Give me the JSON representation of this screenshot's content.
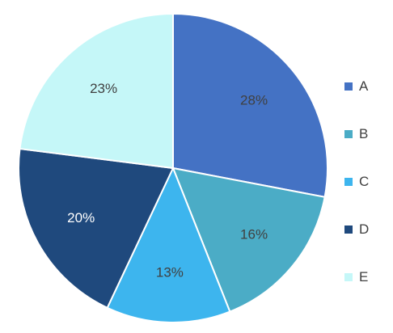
{
  "chart_data": {
    "type": "pie",
    "categories": [
      "A",
      "B",
      "C",
      "D",
      "E"
    ],
    "values": [
      28,
      16,
      13,
      20,
      23
    ],
    "labels": [
      "28%",
      "16%",
      "13%",
      "20%",
      "23%"
    ],
    "colors": [
      "#4472C4",
      "#4BACC6",
      "#3DB5EE",
      "#1F497D",
      "#C5F7F8"
    ],
    "label_colors": [
      "#404040",
      "#404040",
      "#404040",
      "#ffffff",
      "#404040"
    ],
    "legend_position": "right"
  }
}
